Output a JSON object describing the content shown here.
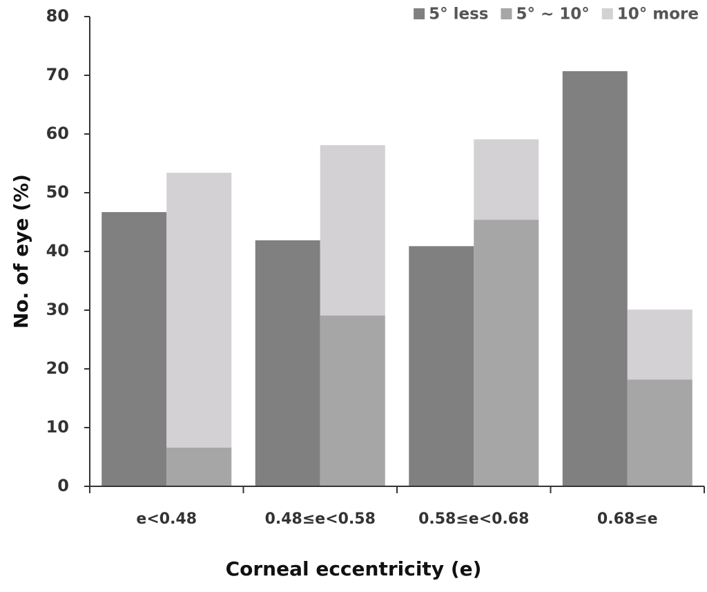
{
  "chart_data": {
    "type": "grouped_stacked_bar",
    "x_label": "Corneal eccentricity (e)",
    "y_label": "No. of eye (%)",
    "categories": [
      "e<0.48",
      "0.48≤e<0.58",
      "0.58≤e<0.68",
      "0.68≤e"
    ],
    "series": [
      {
        "name": "5° less",
        "color": "#808080",
        "stack": "a",
        "values": [
          46.7,
          41.9,
          40.9,
          70.7
        ]
      },
      {
        "name": "5° ~ 10°",
        "color": "#a6a6a6",
        "stack": "b",
        "values": [
          6.6,
          29.1,
          45.4,
          18.2
        ]
      },
      {
        "name": "10° more",
        "color": "#d3d1d3",
        "stack": "b",
        "values": [
          46.8,
          29.0,
          13.7,
          11.9
        ]
      }
    ],
    "ylim": [
      0,
      80
    ],
    "yticks": [
      0,
      10,
      20,
      30,
      40,
      50,
      60,
      70,
      80
    ],
    "legend": "top-right"
  }
}
